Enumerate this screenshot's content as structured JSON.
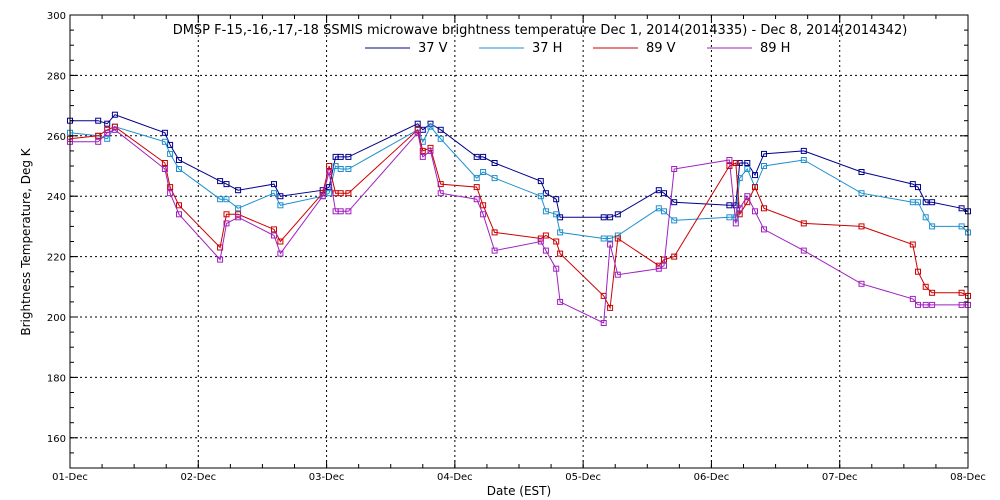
{
  "chart_data": {
    "type": "line",
    "title": "DMSP F-15,-16,-17,-18 SSMIS microwave brightness temperature Dec  1, 2014(2014335) - Dec  8, 2014(2014342)",
    "xlabel": "Date (EST)",
    "ylabel": "Brightness Temperature, Deg K",
    "ylim": [
      150,
      300
    ],
    "yticks": [
      160,
      180,
      200,
      220,
      240,
      260,
      280,
      300
    ],
    "xlim": [
      0,
      7
    ],
    "xticks": [
      0,
      1,
      2,
      3,
      4,
      5,
      6,
      7
    ],
    "xtick_labels": [
      "01-Dec",
      "02-Dec",
      "03-Dec",
      "04-Dec",
      "05-Dec",
      "06-Dec",
      "07-Dec",
      "08-Dec"
    ],
    "grid": true,
    "legend_position": "top-center",
    "series": [
      {
        "name": "37 V",
        "color": "#00008b",
        "x": [
          0.0,
          0.22,
          0.29,
          0.35,
          0.74,
          0.78,
          0.85,
          1.17,
          1.22,
          1.31,
          1.59,
          1.64,
          1.97,
          2.02,
          2.07,
          2.11,
          2.17,
          2.71,
          2.75,
          2.81,
          2.89,
          3.17,
          3.22,
          3.31,
          3.67,
          3.71,
          3.79,
          3.82,
          4.16,
          4.21,
          4.27,
          4.59,
          4.63,
          4.71,
          5.14,
          5.19,
          5.22,
          5.28,
          5.34,
          5.41,
          5.72,
          6.17,
          6.57,
          6.61,
          6.67,
          6.72,
          6.95,
          7.0
        ],
        "y": [
          265,
          265,
          264,
          267,
          261,
          257,
          252,
          245,
          244,
          242,
          244,
          240,
          242,
          243,
          253,
          253,
          253,
          264,
          262,
          264,
          262,
          253,
          253,
          251,
          245,
          241,
          239,
          233,
          233,
          233,
          234,
          242,
          241,
          238,
          237,
          237,
          251,
          251,
          247,
          254,
          255,
          248,
          244,
          243,
          238,
          238,
          236,
          235
        ]
      },
      {
        "name": "37 H",
        "color": "#1e90cd",
        "x": [
          0.0,
          0.22,
          0.29,
          0.35,
          0.74,
          0.78,
          0.85,
          1.17,
          1.22,
          1.31,
          1.59,
          1.64,
          1.97,
          2.02,
          2.07,
          2.11,
          2.17,
          2.71,
          2.75,
          2.81,
          2.89,
          3.17,
          3.22,
          3.31,
          3.67,
          3.71,
          3.79,
          3.82,
          4.16,
          4.21,
          4.27,
          4.59,
          4.63,
          4.71,
          5.14,
          5.19,
          5.22,
          5.28,
          5.34,
          5.41,
          5.72,
          6.17,
          6.57,
          6.61,
          6.67,
          6.72,
          6.95,
          7.0
        ],
        "y": [
          261,
          260,
          259,
          263,
          258,
          254,
          249,
          239,
          239,
          236,
          241,
          237,
          240,
          241,
          250,
          249,
          249,
          262,
          258,
          263,
          259,
          246,
          248,
          246,
          240,
          235,
          234,
          228,
          226,
          226,
          227,
          236,
          235,
          232,
          233,
          233,
          246,
          249,
          243,
          250,
          252,
          241,
          238,
          238,
          233,
          230,
          230,
          228
        ]
      },
      {
        "name": "89 V",
        "color": "#cc0000",
        "x": [
          0.0,
          0.22,
          0.29,
          0.35,
          0.74,
          0.78,
          0.85,
          1.17,
          1.22,
          1.31,
          1.59,
          1.64,
          1.97,
          2.02,
          2.07,
          2.11,
          2.17,
          2.71,
          2.75,
          2.81,
          2.89,
          3.17,
          3.22,
          3.31,
          3.67,
          3.71,
          3.79,
          3.82,
          4.16,
          4.21,
          4.27,
          4.59,
          4.63,
          4.71,
          5.14,
          5.19,
          5.22,
          5.28,
          5.34,
          5.41,
          5.72,
          6.17,
          6.57,
          6.61,
          6.67,
          6.72,
          6.95,
          7.0
        ],
        "y": [
          259,
          260,
          262,
          263,
          251,
          243,
          237,
          223,
          234,
          234,
          229,
          225,
          241,
          250,
          241,
          241,
          241,
          262,
          255,
          256,
          244,
          243,
          237,
          228,
          226,
          227,
          225,
          221,
          207,
          203,
          226,
          217,
          219,
          220,
          250,
          251,
          234,
          238,
          243,
          236,
          231,
          230,
          224,
          215,
          210,
          208,
          208,
          207
        ]
      },
      {
        "name": "89 H",
        "color": "#a020c0",
        "x": [
          0.0,
          0.22,
          0.29,
          0.35,
          0.74,
          0.78,
          0.85,
          1.17,
          1.22,
          1.31,
          1.59,
          1.64,
          1.97,
          2.02,
          2.07,
          2.11,
          2.17,
          2.71,
          2.75,
          2.81,
          2.89,
          3.17,
          3.22,
          3.31,
          3.67,
          3.71,
          3.79,
          3.82,
          4.16,
          4.21,
          4.27,
          4.59,
          4.63,
          4.71,
          5.14,
          5.19,
          5.22,
          5.28,
          5.34,
          5.41,
          5.72,
          6.17,
          6.57,
          6.61,
          6.67,
          6.72,
          6.95,
          7.0
        ],
        "y": [
          258,
          258,
          261,
          262,
          249,
          241,
          234,
          219,
          231,
          233,
          227,
          221,
          240,
          248,
          235,
          235,
          235,
          261,
          253,
          255,
          241,
          239,
          234,
          222,
          225,
          222,
          216,
          205,
          198,
          224,
          214,
          216,
          217,
          249,
          252,
          231,
          236,
          240,
          235,
          229,
          222,
          211,
          206,
          204,
          204,
          204,
          204,
          204
        ]
      }
    ]
  }
}
